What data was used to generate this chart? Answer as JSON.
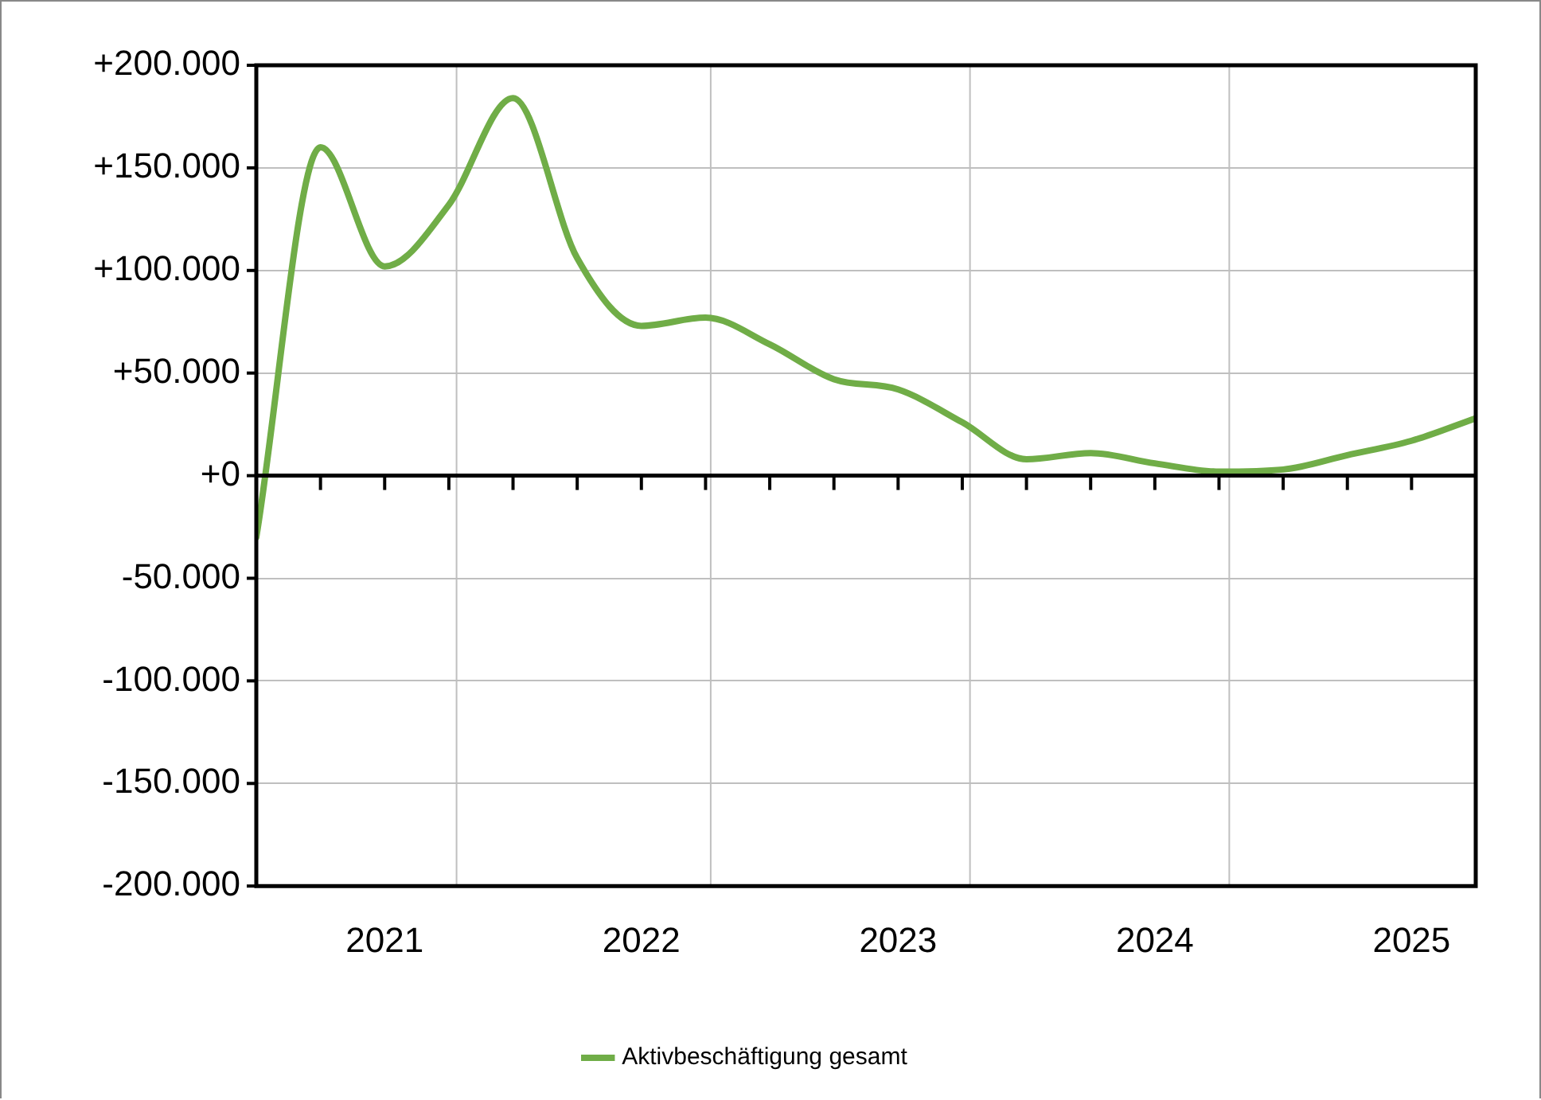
{
  "chart_data": {
    "type": "line",
    "x": [
      2020.5,
      2020.75,
      2021,
      2021.25,
      2021.5,
      2021.75,
      2022,
      2022.25,
      2022.5,
      2022.75,
      2023,
      2023.25,
      2023.5,
      2023.75,
      2024,
      2024.25,
      2024.5,
      2024.75,
      2025,
      2025.25
    ],
    "series": [
      {
        "name": "Aktivbeschäftigung gesamt",
        "color": "#70ad47",
        "values": [
          -30000,
          160000,
          102000,
          132000,
          184000,
          106000,
          73000,
          77000,
          64000,
          47000,
          42000,
          26000,
          8000,
          11000,
          6000,
          2000,
          3000,
          10000,
          17000,
          28000
        ]
      }
    ],
    "xlim": [
      2020.5,
      2025.25
    ],
    "xticks": [
      {
        "value": 2020.75,
        "label": null
      },
      {
        "value": 2021,
        "label": "2021"
      },
      {
        "value": 2021.25,
        "label": null
      },
      {
        "value": 2021.5,
        "label": null
      },
      {
        "value": 2021.75,
        "label": null
      },
      {
        "value": 2022,
        "label": "2022"
      },
      {
        "value": 2022.25,
        "label": null
      },
      {
        "value": 2022.5,
        "label": null
      },
      {
        "value": 2022.75,
        "label": null
      },
      {
        "value": 2023,
        "label": "2023"
      },
      {
        "value": 2023.25,
        "label": null
      },
      {
        "value": 2023.5,
        "label": null
      },
      {
        "value": 2023.75,
        "label": null
      },
      {
        "value": 2024,
        "label": "2024"
      },
      {
        "value": 2024.25,
        "label": null
      },
      {
        "value": 2024.5,
        "label": null
      },
      {
        "value": 2024.75,
        "label": null
      },
      {
        "value": 2025,
        "label": "2025"
      }
    ],
    "ylim": [
      -200000,
      200000
    ],
    "yticks": [
      {
        "value": -200000,
        "label": "-200.000"
      },
      {
        "value": -150000,
        "label": "-150.000"
      },
      {
        "value": -100000,
        "label": "-100.000"
      },
      {
        "value": -50000,
        "label": "-50.000"
      },
      {
        "value": 0,
        "label": "+0"
      },
      {
        "value": 50000,
        "label": "+50.000"
      },
      {
        "value": 100000,
        "label": "+100.000"
      },
      {
        "value": 150000,
        "label": "+150.000"
      },
      {
        "value": 200000,
        "label": "+200.000"
      }
    ],
    "ref_lines": [
      {
        "axis": "x",
        "value": 2021.28,
        "color": "#bfbfbf"
      },
      {
        "axis": "x",
        "value": 2022.27,
        "color": "#bfbfbf"
      },
      {
        "axis": "x",
        "value": 2023.28,
        "color": "#bfbfbf"
      },
      {
        "axis": "x",
        "value": 2024.29,
        "color": "#bfbfbf"
      }
    ],
    "grid": "y",
    "legend": "bottom",
    "marker": "none",
    "line_style": "solid"
  }
}
